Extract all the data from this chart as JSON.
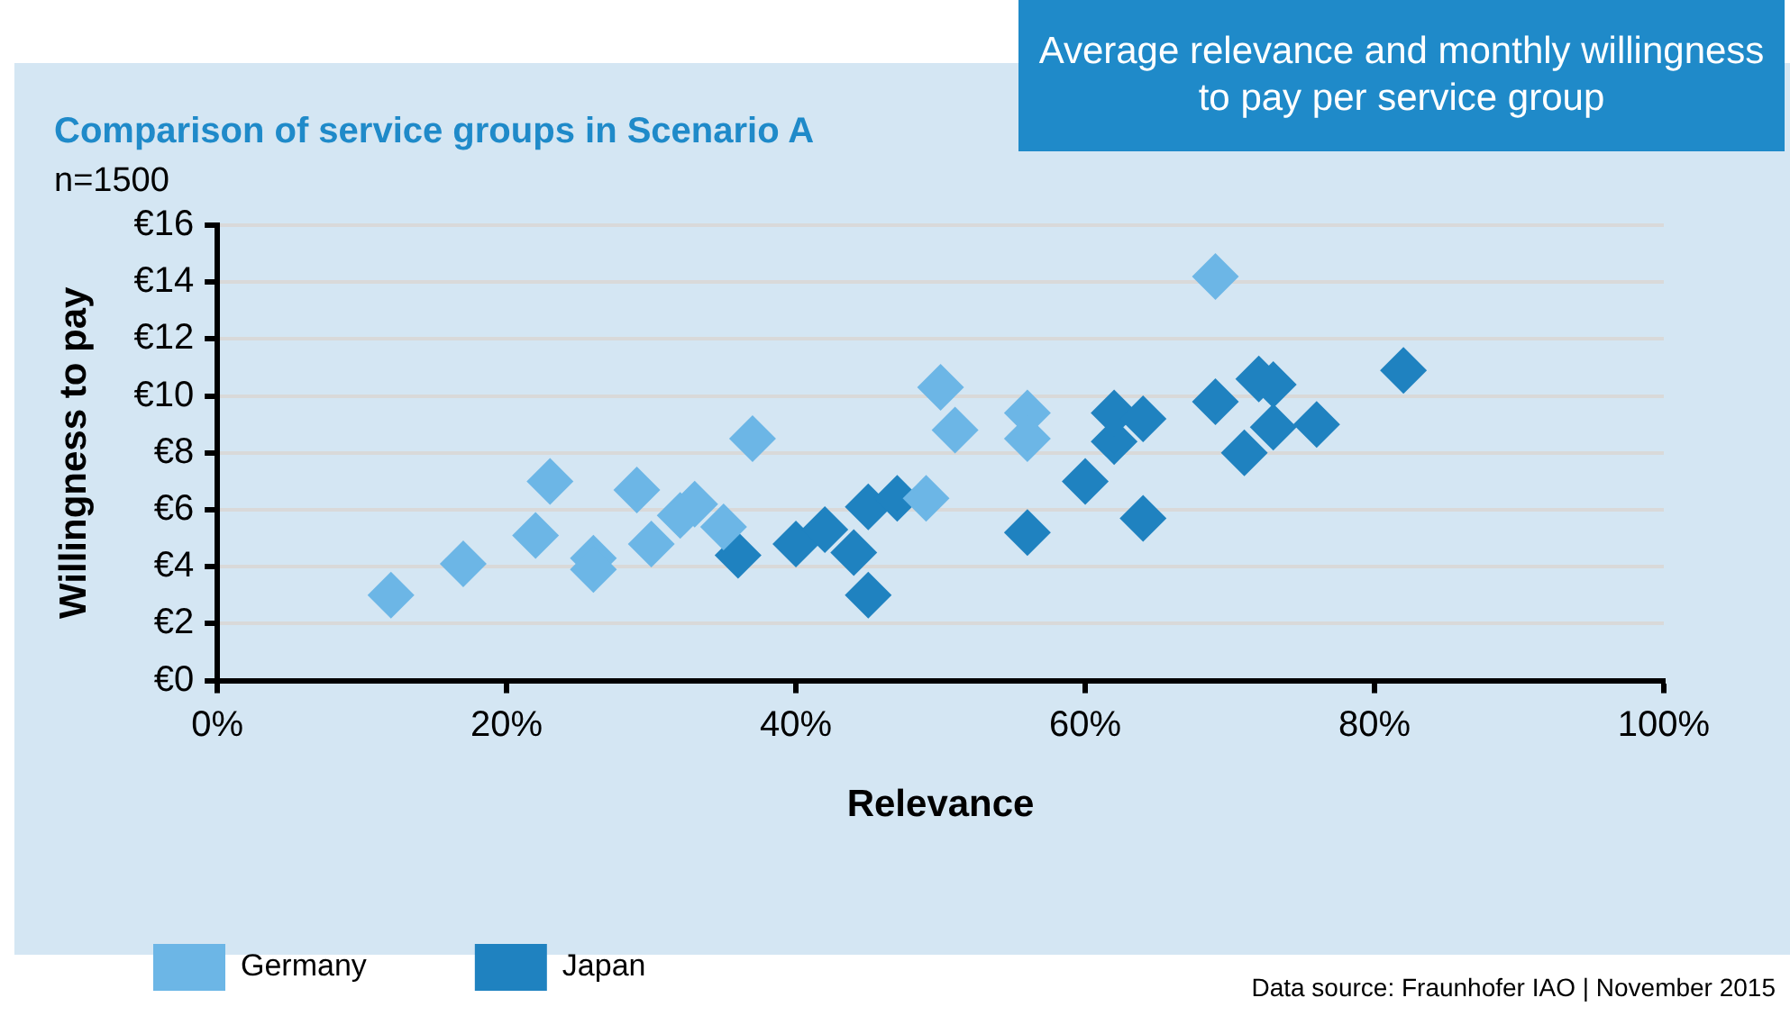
{
  "chart_data": {
    "type": "scatter",
    "title": "Average relevance and monthly willingness to pay per service group",
    "subtitle": "Comparison of service groups in Scenario A",
    "annotations": [
      "n=1500",
      "Data source: Fraunhofer IAO | November 2015"
    ],
    "xlabel": "Relevance",
    "ylabel": "Willingness to pay",
    "series": [
      {
        "name": "Germany",
        "color": "#6cb6e6",
        "x": [
          12,
          17,
          22,
          23,
          26,
          26,
          29,
          30,
          32,
          33,
          35,
          37,
          49,
          50,
          51,
          56,
          56,
          69
        ],
        "values": [
          3.0,
          4.1,
          5.1,
          7.0,
          4.3,
          3.9,
          6.7,
          4.8,
          5.8,
          6.2,
          5.4,
          8.5,
          6.4,
          10.3,
          8.8,
          9.4,
          8.5,
          14.2
        ]
      },
      {
        "name": "Japan",
        "color": "#1f82c0",
        "x": [
          36,
          40,
          42,
          44,
          45,
          45,
          47,
          56,
          60,
          62,
          62,
          64,
          64,
          69,
          71,
          72,
          73,
          73,
          76,
          82
        ],
        "values": [
          4.4,
          4.8,
          5.3,
          4.5,
          3.0,
          6.1,
          6.4,
          5.2,
          7.0,
          8.4,
          9.4,
          9.2,
          5.7,
          9.8,
          8.0,
          10.6,
          10.4,
          8.9,
          9.0,
          10.9
        ]
      }
    ],
    "xlim": [
      0,
      100
    ],
    "xticks": [
      {
        "value": 0,
        "label": "0%"
      },
      {
        "value": 20,
        "label": "20%"
      },
      {
        "value": 40,
        "label": "40%"
      },
      {
        "value": 60,
        "label": "60%"
      },
      {
        "value": 80,
        "label": "80%"
      },
      {
        "value": 100,
        "label": "100%"
      }
    ],
    "ylim": [
      0,
      16
    ],
    "yticks": [
      {
        "value": 0,
        "label": "€0"
      },
      {
        "value": 2,
        "label": "€2"
      },
      {
        "value": 4,
        "label": "€4"
      },
      {
        "value": 6,
        "label": "€6"
      },
      {
        "value": 8,
        "label": "€8"
      },
      {
        "value": 10,
        "label": "€10"
      },
      {
        "value": 12,
        "label": "€12"
      },
      {
        "value": 14,
        "label": "€14"
      },
      {
        "value": 16,
        "label": "€16"
      }
    ],
    "grid": "y",
    "legend": "bottom left",
    "marker": "diamond"
  }
}
